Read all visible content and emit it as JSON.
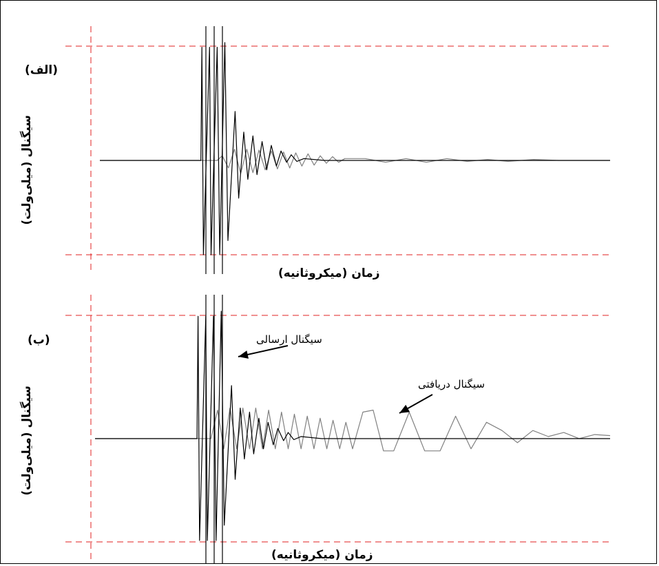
{
  "chart_data": [
    {
      "type": "line",
      "panel_label": "(الف)",
      "xlabel": "زمان (میکروثانیه)",
      "ylabel": "سیگنال (میلی‌ولت)",
      "grid": false,
      "series": [
        {
          "color": "#000000",
          "x": [
            0.0,
            0.198,
            0.2,
            0.203,
            0.215,
            0.218,
            0.23,
            0.235,
            0.245,
            0.251,
            0.265,
            0.272,
            0.282,
            0.29,
            0.3,
            0.308,
            0.318,
            0.327,
            0.336,
            0.346,
            0.355,
            0.366,
            0.375,
            0.386,
            0.4,
            0.44,
            0.5,
            0.6,
            0.7,
            0.8,
            0.9,
            1.0
          ],
          "y": [
            0.0,
            0.0,
            1.2,
            -1.0,
            1.2,
            -1.0,
            1.2,
            -1.0,
            1.25,
            -0.85,
            0.52,
            -0.4,
            0.3,
            -0.2,
            0.26,
            -0.15,
            0.2,
            -0.1,
            0.16,
            -0.06,
            0.1,
            -0.02,
            0.06,
            -0.01,
            0.02,
            0.0,
            0.0,
            0.0,
            0.0,
            0.0,
            0.0,
            0.0
          ]
        },
        {
          "color": "#808080",
          "x": [
            0.0,
            0.23,
            0.24,
            0.252,
            0.264,
            0.276,
            0.288,
            0.3,
            0.312,
            0.324,
            0.336,
            0.348,
            0.36,
            0.372,
            0.384,
            0.396,
            0.408,
            0.42,
            0.432,
            0.444,
            0.456,
            0.468,
            0.48,
            0.52,
            0.56,
            0.6,
            0.64,
            0.68,
            0.72,
            0.76,
            0.8,
            0.85,
            0.9,
            1.0
          ],
          "y": [
            0.0,
            0.0,
            0.05,
            -0.08,
            0.12,
            -0.14,
            0.12,
            -0.13,
            0.11,
            -0.1,
            0.1,
            -0.09,
            0.09,
            -0.08,
            0.08,
            -0.06,
            0.07,
            -0.05,
            0.05,
            -0.03,
            0.04,
            -0.02,
            0.02,
            0.02,
            -0.02,
            0.02,
            -0.02,
            0.02,
            -0.01,
            0.01,
            -0.01,
            0.01,
            0.0,
            0.0
          ]
        }
      ]
    },
    {
      "type": "line",
      "panel_label": "(ب)",
      "xlabel": "زمان (میکروثانیه)",
      "ylabel": "سیگنال (میلی‌ولت)",
      "grid": false,
      "annotations": [
        "سیگنال ارسالی",
        "سیگنال دریافتی"
      ],
      "series": [
        {
          "color": "#000000",
          "x": [
            0.0,
            0.198,
            0.2,
            0.203,
            0.215,
            0.218,
            0.23,
            0.235,
            0.245,
            0.251,
            0.265,
            0.272,
            0.282,
            0.29,
            0.3,
            0.308,
            0.318,
            0.327,
            0.336,
            0.346,
            0.355,
            0.366,
            0.375,
            0.386,
            0.4,
            0.44,
            0.5,
            0.6,
            0.7,
            0.8,
            0.9,
            1.0
          ],
          "y": [
            0.0,
            0.0,
            1.2,
            -1.0,
            1.2,
            -1.0,
            1.2,
            -1.0,
            1.25,
            -0.85,
            0.52,
            -0.4,
            0.3,
            -0.2,
            0.26,
            -0.15,
            0.2,
            -0.1,
            0.16,
            -0.06,
            0.1,
            -0.02,
            0.06,
            -0.01,
            0.02,
            0.0,
            0.0,
            0.0,
            0.0,
            0.0,
            0.0,
            0.0
          ]
        },
        {
          "color": "#808080",
          "x": [
            0.0,
            0.225,
            0.238,
            0.25,
            0.262,
            0.275,
            0.287,
            0.3,
            0.312,
            0.325,
            0.337,
            0.35,
            0.362,
            0.375,
            0.387,
            0.4,
            0.412,
            0.425,
            0.437,
            0.45,
            0.462,
            0.475,
            0.487,
            0.5,
            0.52,
            0.54,
            0.56,
            0.58,
            0.61,
            0.64,
            0.67,
            0.7,
            0.73,
            0.76,
            0.79,
            0.82,
            0.85,
            0.88,
            0.91,
            0.94,
            0.97,
            1.0
          ],
          "y": [
            0.0,
            0.0,
            0.28,
            -0.1,
            0.3,
            -0.1,
            0.3,
            -0.1,
            0.3,
            -0.1,
            0.28,
            -0.1,
            0.26,
            -0.1,
            0.24,
            -0.1,
            0.22,
            -0.1,
            0.2,
            -0.1,
            0.18,
            -0.1,
            0.16,
            -0.1,
            0.26,
            0.28,
            -0.12,
            -0.12,
            0.26,
            -0.12,
            -0.12,
            0.22,
            -0.1,
            0.16,
            0.08,
            -0.04,
            0.08,
            0.02,
            0.06,
            0.0,
            0.04,
            0.03
          ]
        }
      ]
    }
  ]
}
